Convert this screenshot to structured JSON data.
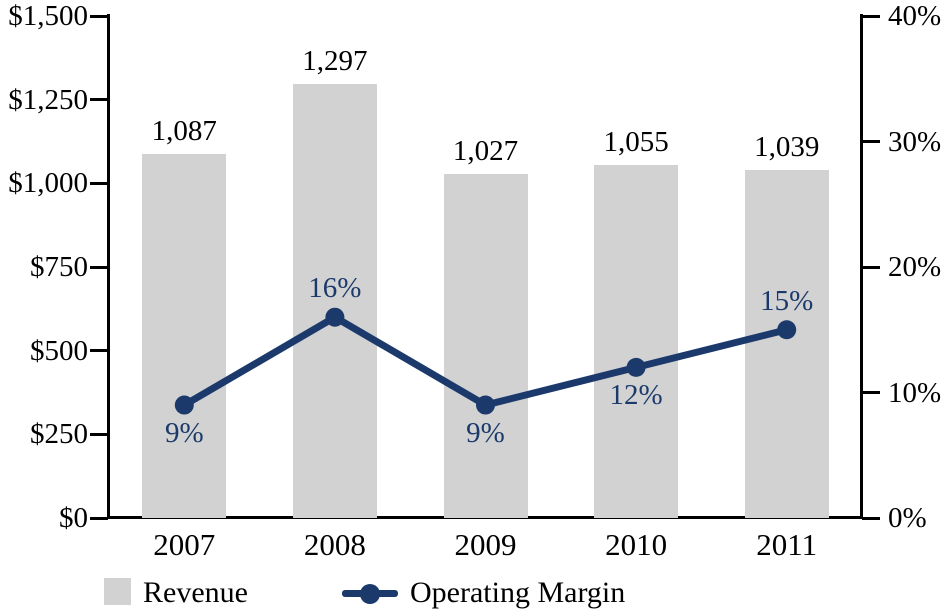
{
  "chart_data": {
    "type": "combo",
    "title": "",
    "categories": [
      "2007",
      "2008",
      "2009",
      "2010",
      "2011"
    ],
    "series": [
      {
        "name": "Revenue",
        "kind": "bar",
        "axis": "left",
        "values": [
          1087,
          1297,
          1027,
          1055,
          1039
        ],
        "labels": [
          "1,087",
          "1,297",
          "1,027",
          "1,055",
          "1,039"
        ],
        "color": "#d2d2d2"
      },
      {
        "name": "Operating Margin",
        "kind": "line",
        "axis": "right",
        "values": [
          9,
          16,
          9,
          12,
          15
        ],
        "labels": [
          "9%",
          "16%",
          "9%",
          "12%",
          "15%"
        ],
        "label_positions": [
          "below",
          "above",
          "below",
          "below",
          "above"
        ],
        "color": "#1b3a6b"
      }
    ],
    "left_axis": {
      "min": 0,
      "max": 1500,
      "ticks": [
        {
          "value": 1500,
          "label": "$1,500"
        },
        {
          "value": 1250,
          "label": "$1,250"
        },
        {
          "value": 1000,
          "label": "$1,000"
        },
        {
          "value": 750,
          "label": "$750"
        },
        {
          "value": 500,
          "label": "$500"
        },
        {
          "value": 250,
          "label": "$250"
        },
        {
          "value": 0,
          "label": "$0"
        }
      ]
    },
    "right_axis": {
      "min": 0,
      "max": 40,
      "ticks": [
        {
          "value": 40,
          "label": "40%"
        },
        {
          "value": 30,
          "label": "30%"
        },
        {
          "value": 20,
          "label": "20%"
        },
        {
          "value": 10,
          "label": "10%"
        },
        {
          "value": 0,
          "label": "0%"
        }
      ]
    },
    "legend": [
      {
        "label": "Revenue",
        "swatch": "bar"
      },
      {
        "label": "Operating Margin",
        "swatch": "line"
      }
    ],
    "colors": {
      "bar": "#d2d2d2",
      "line": "#1b3a6b",
      "axis": "#000000",
      "text": "#000000"
    },
    "layout_hints": {
      "grid": "off",
      "legend_position": "bottom"
    }
  }
}
